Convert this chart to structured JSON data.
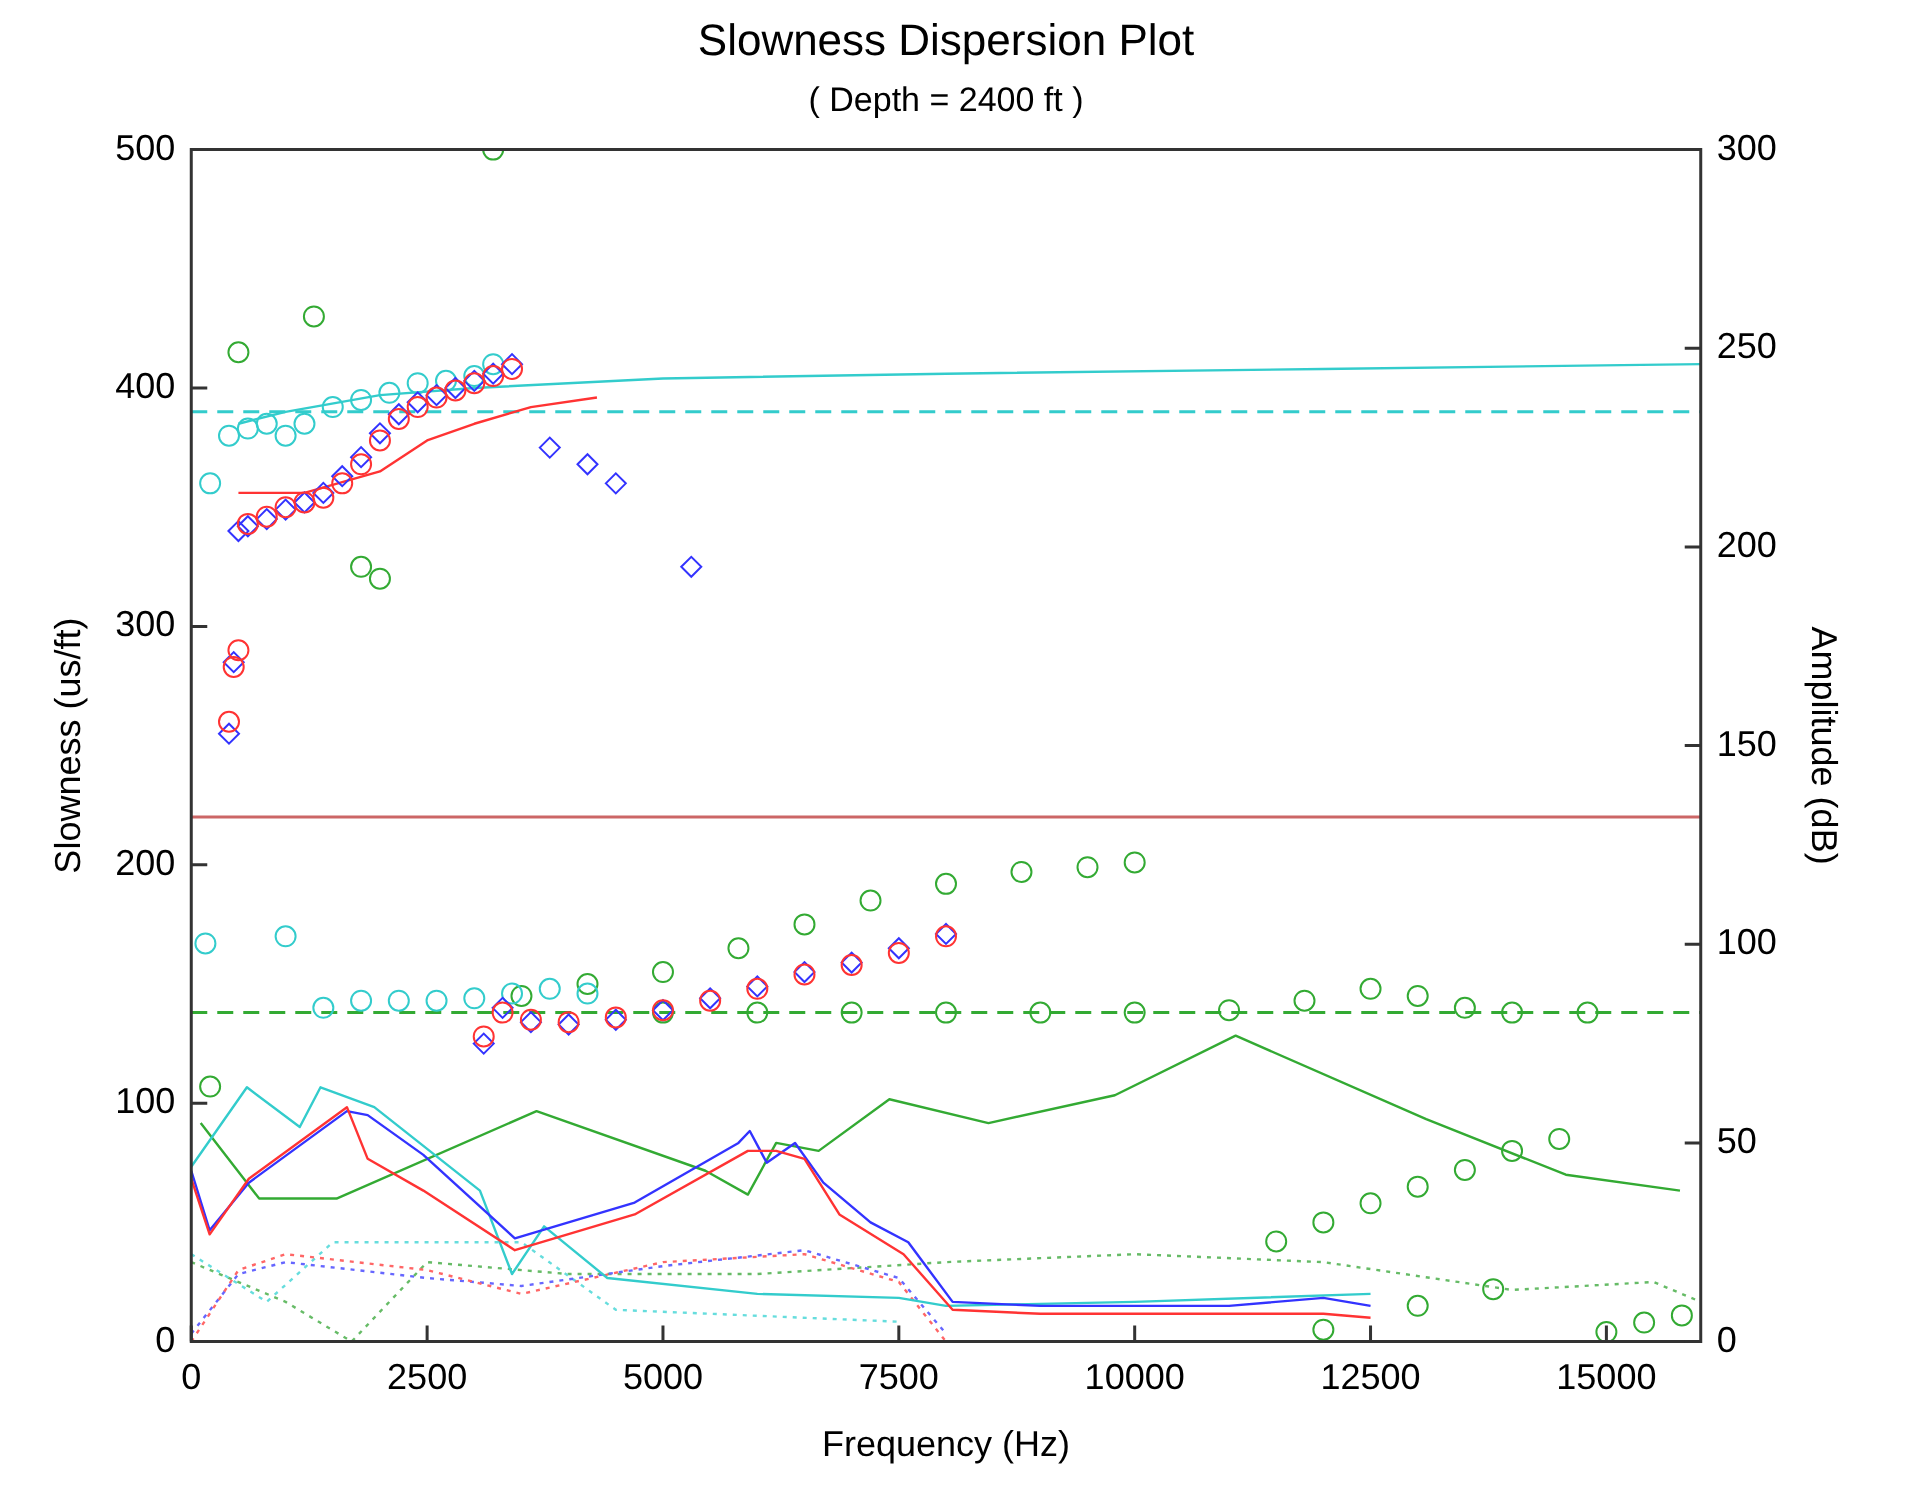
{
  "chart_data": {
    "type": "scatter",
    "title": "Slowness Dispersion Plot",
    "subtitle": "( Depth = 2400 ft )",
    "xlabel": "Frequency (Hz)",
    "ylabel": "Slowness (us/ft)",
    "y2label": "Amplitude (dB)",
    "xlim": [
      0,
      16000
    ],
    "xticks": [
      0,
      2500,
      5000,
      7500,
      10000,
      12500,
      15000
    ],
    "ylim": [
      0,
      500
    ],
    "yticks": [
      0,
      100,
      200,
      300,
      400,
      500
    ],
    "y2lim": [
      0,
      300
    ],
    "y2ticks": [
      0,
      50,
      100,
      150,
      200,
      250,
      300
    ],
    "grid": false,
    "legend": false,
    "ref_lines": [
      {
        "axis": "y",
        "value": 390,
        "color": "#33cccc",
        "line_style": "dashed"
      },
      {
        "axis": "y",
        "value": 220,
        "color": "#cc6666",
        "line_style": "solid"
      },
      {
        "axis": "y",
        "value": 138,
        "color": "#33aa33",
        "line_style": "dashed"
      }
    ],
    "series": [
      {
        "marker": "circle",
        "color": "#ff3333",
        "x": [
          400,
          450,
          500,
          600,
          800,
          1000,
          1200,
          1400,
          1600,
          1800,
          2000,
          2200,
          2400,
          2600,
          2800,
          3000,
          3200,
          3400,
          3100,
          3300,
          3600,
          4000,
          4500,
          5000,
          5500,
          6000,
          6500,
          7000,
          7500,
          8000
        ],
        "values": [
          260,
          283,
          290,
          343,
          346,
          350,
          352,
          354,
          360,
          368,
          378,
          387,
          392,
          396,
          399,
          402,
          405,
          408,
          128,
          138,
          135,
          134,
          136,
          139,
          143,
          148,
          154,
          158,
          163,
          170
        ]
      },
      {
        "marker": "diamond",
        "color": "#3333ff",
        "x": [
          400,
          450,
          500,
          600,
          800,
          1000,
          1200,
          1400,
          1600,
          1800,
          2000,
          2200,
          2400,
          2600,
          2800,
          3000,
          3200,
          3400,
          3800,
          4200,
          4500,
          5300,
          3100,
          3300,
          3600,
          4000,
          4500,
          5000,
          5500,
          6000,
          6500,
          7000,
          7500,
          8000
        ],
        "values": [
          255,
          285,
          340,
          342,
          345,
          349,
          352,
          356,
          363,
          371,
          381,
          389,
          394,
          397,
          400,
          403,
          406,
          410,
          375,
          368,
          360,
          325,
          125,
          140,
          134,
          133,
          135,
          139,
          144,
          149,
          155,
          159,
          165,
          171
        ]
      },
      {
        "marker": "circle",
        "color": "#33cccc",
        "x": [
          200,
          400,
          600,
          800,
          1000,
          1200,
          1500,
          1800,
          2100,
          2400,
          2700,
          3000,
          3200,
          150,
          1000,
          1400,
          1800,
          2200,
          2600,
          3000,
          3400,
          3800,
          4200
        ],
        "values": [
          360,
          380,
          383,
          385,
          380,
          385,
          392,
          395,
          398,
          402,
          403,
          405,
          410,
          167,
          170,
          140,
          143,
          143,
          143,
          144,
          146,
          148,
          146
        ]
      },
      {
        "marker": "circle",
        "color": "#33aa33",
        "x": [
          500,
          1300,
          1800,
          2000,
          3200,
          3500,
          4200,
          5000,
          5800,
          6500,
          7200,
          8000,
          8800,
          9500,
          10000,
          5000,
          6000,
          7000,
          8000,
          9000,
          10000,
          11000,
          11800,
          12500,
          13000,
          13500,
          14000,
          14800,
          11500,
          12000,
          12500,
          13000,
          13500,
          14000,
          14500,
          12000,
          13000,
          13800,
          15000,
          15400,
          15800,
          200
        ],
        "values": [
          415,
          430,
          325,
          320,
          500,
          145,
          150,
          155,
          165,
          175,
          185,
          192,
          197,
          199,
          201,
          138,
          138,
          138,
          138,
          138,
          138,
          139,
          143,
          148,
          145,
          140,
          138,
          138,
          42,
          50,
          58,
          65,
          72,
          80,
          85,
          5,
          15,
          22,
          4,
          8,
          11,
          107
        ]
      },
      {
        "type": "line",
        "axis": "y2",
        "color": "#ff3333",
        "x": [
          0,
          195,
          610,
          1650,
          1870,
          2460,
          3430,
          4700,
          5900,
          6200,
          6500,
          6870,
          7550,
          8070,
          9000,
          10000,
          11000,
          12000,
          12500
        ],
        "values": [
          41,
          27,
          41,
          59,
          46,
          38,
          23,
          32,
          48,
          48,
          46,
          32,
          22,
          8,
          7,
          7,
          7,
          7,
          6
        ]
      },
      {
        "type": "line",
        "axis": "y2",
        "color": "#3333ff",
        "x": [
          0,
          195,
          610,
          1650,
          1870,
          2460,
          3430,
          4700,
          5800,
          5920,
          6100,
          6400,
          6700,
          7200,
          7600,
          8070,
          9000,
          10000,
          11000,
          12000,
          12500
        ],
        "values": [
          43,
          28,
          40,
          58,
          57,
          47,
          26,
          35,
          50,
          53,
          45,
          50,
          40,
          30,
          25,
          10,
          9,
          9,
          9,
          11,
          9
        ]
      },
      {
        "type": "line",
        "axis": "y2",
        "color": "#33cccc",
        "x": [
          0,
          590,
          1150,
          1370,
          1940,
          3060,
          3400,
          3740,
          4410,
          6000,
          7500,
          8000,
          10000,
          12500
        ],
        "values": [
          44,
          64,
          54,
          64,
          59,
          38,
          17,
          29,
          16,
          12,
          11,
          9,
          10,
          12
        ]
      },
      {
        "type": "line",
        "axis": "y2",
        "color": "#33aa33",
        "x": [
          100,
          720,
          1540,
          3660,
          5450,
          5900,
          6200,
          6650,
          7400,
          8450,
          9790,
          11070,
          13090,
          14570,
          15780
        ],
        "values": [
          55,
          36,
          36,
          58,
          43,
          37,
          50,
          48,
          61,
          55,
          62,
          77,
          56,
          42,
          38
        ]
      },
      {
        "type": "line",
        "axis": "y2",
        "line_style": "dotted",
        "color": "#ff6666",
        "x": [
          0,
          500,
          1000,
          2500,
          3500,
          5000,
          6500,
          7500,
          8000
        ],
        "values": [
          0,
          18,
          22,
          18,
          12,
          20,
          22,
          15,
          0
        ]
      },
      {
        "type": "line",
        "axis": "y2",
        "line_style": "dotted",
        "color": "#6666ff",
        "x": [
          0,
          500,
          1000,
          2500,
          3500,
          5000,
          6500,
          7500,
          8000
        ],
        "values": [
          2,
          17,
          20,
          16,
          14,
          19,
          23,
          16,
          2
        ]
      },
      {
        "type": "line",
        "axis": "y2",
        "line_style": "dotted",
        "color": "#66dddd",
        "x": [
          0,
          800,
          1500,
          3500,
          4500,
          7500
        ],
        "values": [
          22,
          10,
          25,
          25,
          8,
          5
        ]
      },
      {
        "type": "line",
        "axis": "y2",
        "line_style": "dotted",
        "color": "#66bb66",
        "x": [
          0,
          1000,
          1700,
          2500,
          4000,
          6000,
          8000,
          10000,
          12000,
          14000,
          15500,
          16000
        ],
        "values": [
          20,
          10,
          0,
          20,
          17,
          17,
          20,
          22,
          20,
          13,
          15,
          10
        ]
      },
      {
        "type": "line",
        "color": "#33cccc",
        "x": [
          500,
          1000,
          2000,
          3000,
          5000,
          8000,
          12000,
          16000
        ],
        "values": [
          385,
          390,
          397,
          400,
          404,
          406,
          408,
          410
        ]
      },
      {
        "type": "line",
        "color": "#ff3333",
        "x": [
          500,
          1200,
          2000,
          2500,
          3000,
          3600,
          4300
        ],
        "values": [
          356,
          356,
          365,
          378,
          385,
          392,
          396
        ]
      }
    ]
  }
}
